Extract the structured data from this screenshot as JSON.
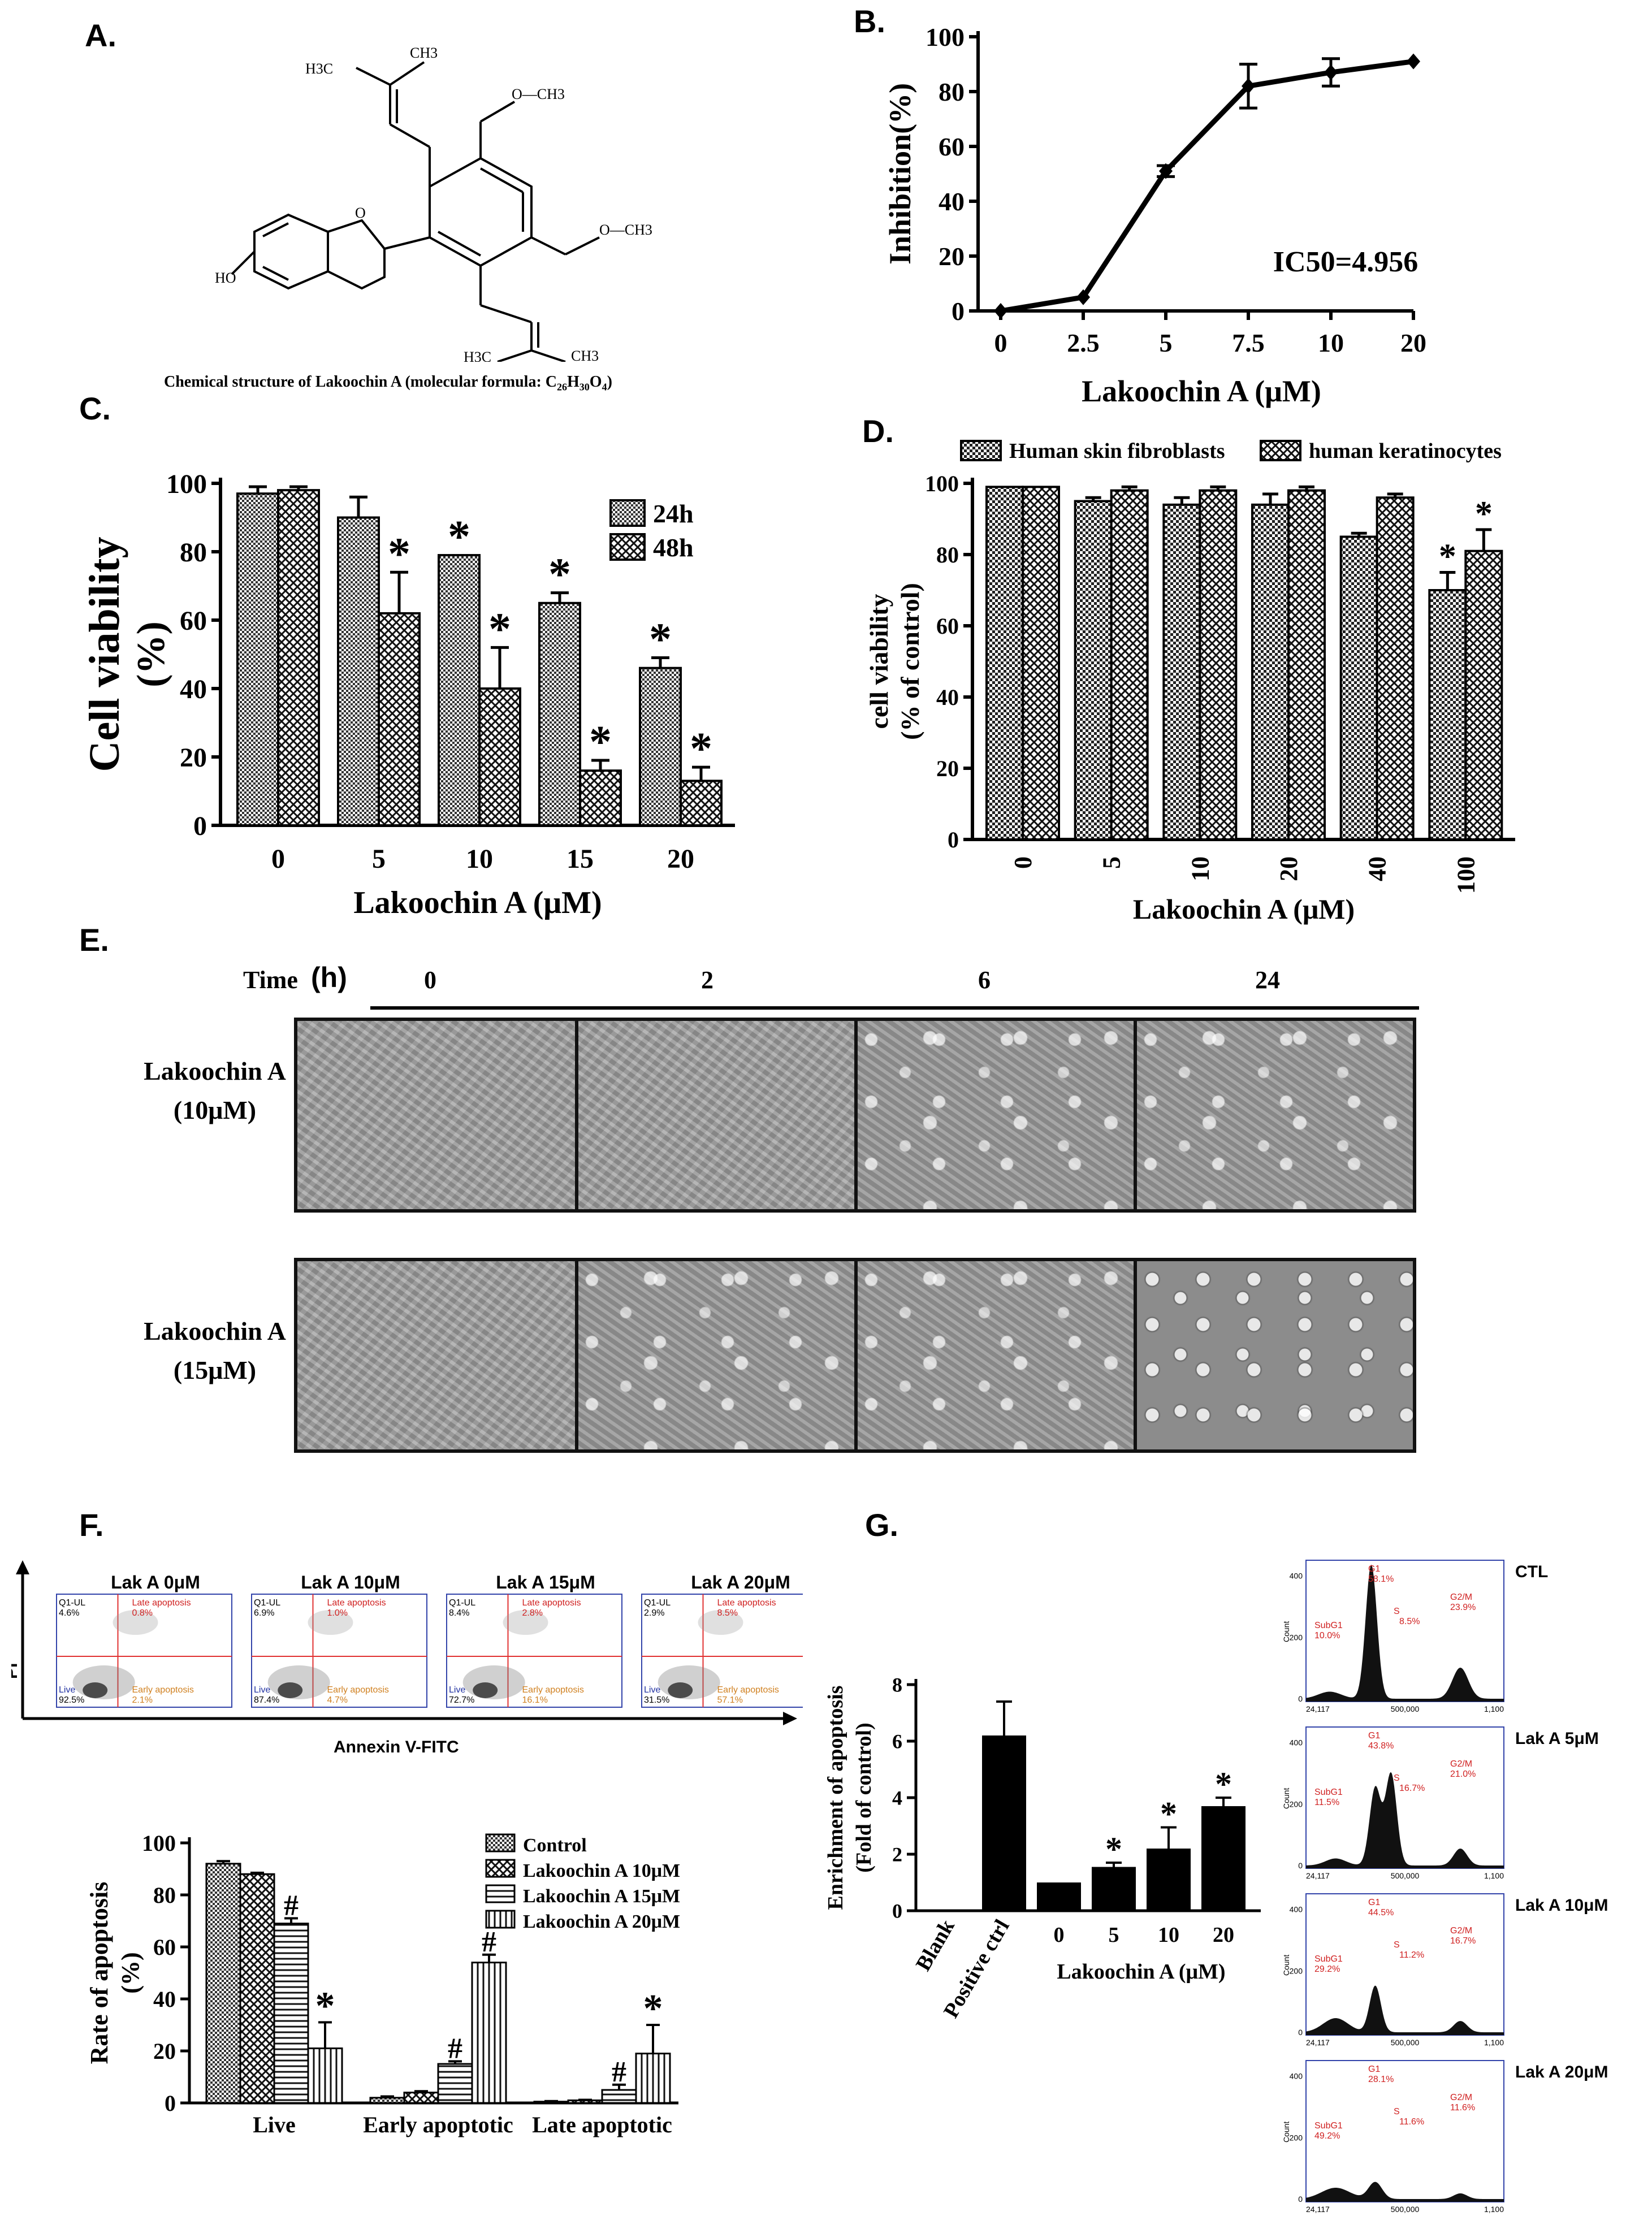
{
  "panels": {
    "A": "A.",
    "B": "B.",
    "C": "C.",
    "D": "D.",
    "E": "E.",
    "F": "F.",
    "G": "G."
  },
  "panelA": {
    "caption_prefix": "Chemical structure of Lakoochin A (molecular formula: C",
    "sub1": "26",
    "mid": "H",
    "sub2": "30",
    "mid2": "O",
    "sub3": "4",
    "suffix": ")",
    "labels": {
      "ch3_top": "CH3",
      "h3c_left": "H3C",
      "och3_top": "O—CH3",
      "och3_mid": "O—CH3",
      "ho": "HO",
      "o_ring": "O",
      "h3c_bottom": "H3C",
      "ch3_bottom": "CH3"
    }
  },
  "chart_data": [
    {
      "id": "B",
      "type": "line",
      "categories": [
        "0",
        "2.5",
        "5",
        "7.5",
        "10",
        "20"
      ],
      "values": [
        0,
        5,
        51,
        82,
        87,
        91
      ],
      "errors": [
        0,
        0,
        2,
        8,
        5,
        0
      ],
      "ylabel": "Inhibition(%)",
      "xlabel": "Lakoochin A (μM)",
      "ylim": [
        0,
        100
      ],
      "yticks": [
        "0",
        "20",
        "40",
        "60",
        "80",
        "100"
      ],
      "annotation": "IC50=4.956"
    },
    {
      "id": "C",
      "type": "bar",
      "categories": [
        "0",
        "5",
        "10",
        "15",
        "20"
      ],
      "series": [
        {
          "name": "24h",
          "values": [
            97,
            90,
            79,
            65,
            46
          ],
          "errors": [
            2,
            6,
            0,
            3,
            3
          ],
          "stars": [
            false,
            false,
            true,
            true,
            true
          ]
        },
        {
          "name": "48h",
          "values": [
            98,
            62,
            40,
            16,
            13
          ],
          "errors": [
            1,
            12,
            12,
            3,
            4
          ],
          "stars": [
            false,
            true,
            true,
            true,
            true
          ]
        }
      ],
      "ylabel_line1": "Cell viability",
      "ylabel_line2": "(%)",
      "xlabel": "Lakoochin A (μM)",
      "ylim": [
        0,
        100
      ],
      "yticks": [
        "0",
        "20",
        "40",
        "60",
        "80",
        "100"
      ],
      "star": "*",
      "legend": [
        "24h",
        "48h"
      ]
    },
    {
      "id": "D",
      "type": "bar",
      "categories": [
        "0",
        "5",
        "10",
        "20",
        "40",
        "100"
      ],
      "series": [
        {
          "name": "Human skin fibroblasts",
          "values": [
            99,
            95,
            94,
            94,
            85,
            70
          ],
          "errors": [
            0,
            1,
            2,
            3,
            1,
            5
          ],
          "stars": [
            false,
            false,
            false,
            false,
            false,
            true
          ]
        },
        {
          "name": "human keratinocytes",
          "values": [
            99,
            98,
            98,
            98,
            96,
            81
          ],
          "errors": [
            0,
            1,
            1,
            1,
            1,
            6
          ],
          "stars": [
            false,
            false,
            false,
            false,
            false,
            true
          ]
        }
      ],
      "ylabel_line1": "cell viability",
      "ylabel_line2": "(% of control)",
      "xlabel": "Lakoochin A  (μM)",
      "ylim": [
        0,
        100
      ],
      "yticks": [
        "0",
        "20",
        "40",
        "60",
        "80",
        "100"
      ],
      "star": "*"
    },
    {
      "id": "F",
      "type": "bar",
      "categories": [
        "Live",
        "Early apoptotic",
        "Late apoptotic"
      ],
      "series": [
        {
          "name": "Control",
          "values": [
            92,
            2,
            0.5
          ],
          "errors": [
            1,
            0.5,
            0.2
          ],
          "marks": [
            "",
            "",
            ""
          ]
        },
        {
          "name": "Lakoochin A 10μM",
          "values": [
            88,
            4,
            1
          ],
          "errors": [
            0.5,
            0.5,
            0.2
          ],
          "marks": [
            "",
            "",
            ""
          ]
        },
        {
          "name": "Lakoochin A 15μM",
          "values": [
            69,
            15,
            5
          ],
          "errors": [
            2,
            1,
            2
          ],
          "marks": [
            "#",
            "#",
            "#"
          ]
        },
        {
          "name": "Lakoochin A 20μM",
          "values": [
            21,
            54,
            19
          ],
          "errors": [
            10,
            3,
            11
          ],
          "marks": [
            "*",
            "#",
            "*"
          ]
        }
      ],
      "ylabel_line1": "Rate of apoptosis",
      "ylabel_line2": "(%)",
      "ylim": [
        0,
        100
      ],
      "yticks": [
        "0",
        "20",
        "40",
        "60",
        "80",
        "100"
      ]
    },
    {
      "id": "G",
      "type": "bar",
      "categories": [
        "Blank",
        "Positive ctrl",
        "0",
        "5",
        "10",
        "20"
      ],
      "values": [
        0,
        6.2,
        1.0,
        1.55,
        2.2,
        3.7
      ],
      "errors": [
        0,
        1.2,
        0,
        0.15,
        0.75,
        0.3
      ],
      "stars": [
        false,
        false,
        false,
        true,
        true,
        true
      ],
      "ylabel_line1": "Enrichment of apoptosis",
      "ylabel_line2": "(Fold of control)",
      "xlabel": "Lakoochin A (μM)",
      "ylim": [
        0,
        8
      ],
      "yticks": [
        "0",
        "2",
        "4",
        "6",
        "8"
      ],
      "star": "*"
    }
  ],
  "panelE": {
    "time_label": "Time",
    "time_unit": "(h)",
    "times": [
      "0",
      "2",
      "6",
      "24"
    ],
    "rows": [
      {
        "line1": "Lakoochin A",
        "line2": "(10μM)"
      },
      {
        "line1": "Lakoochin A",
        "line2": "(15μM)"
      }
    ]
  },
  "panelF_flow": {
    "ylabel": "PI",
    "xlabel": "Annexin V-FITC",
    "plots": [
      {
        "title": "Lak A  0μM",
        "ul": "Q1-UL",
        "ul_val": "4.6%",
        "late": "Late apoptosis",
        "late_val": "0.8%",
        "early": "Early apoptosis",
        "early_val": "2.1%",
        "live": "Live",
        "live_val": "92.5%"
      },
      {
        "title": "Lak A  10μM",
        "ul": "Q1-UL",
        "ul_val": "6.9%",
        "late": "Late apoptosis",
        "late_val": "1.0%",
        "early": "Early apoptosis",
        "early_val": "4.7%",
        "live": "Live",
        "live_val": "87.4%"
      },
      {
        "title": "Lak A 15μM",
        "ul": "Q1-UL",
        "ul_val": "8.4%",
        "late": "Late apoptosis",
        "late_val": "2.8%",
        "early": "Early apoptosis",
        "early_val": "16.1%",
        "live": "Live",
        "live_val": "72.7%"
      },
      {
        "title": "Lak A  20μM",
        "ul": "Q1-UL",
        "ul_val": "2.9%",
        "late": "Late apoptosis",
        "late_val": "8.5%",
        "early": "Early apoptosis",
        "early_val": "57.1%",
        "live": "Live",
        "live_val": "31.5%"
      }
    ]
  },
  "panelG_hist": {
    "ylabel": "Count",
    "xticks": [
      "24,117",
      "500,000",
      "1,100"
    ],
    "yticks": [
      "0",
      "200",
      "400"
    ],
    "plots": [
      {
        "label": "CTL",
        "g1": "G1",
        "g1_val": "58.1%",
        "s": "S",
        "s_val": "8.5%",
        "g2m": "G2/M",
        "g2m_val": "23.9%",
        "subg1": "SubG1",
        "subg1_val": "10.0%"
      },
      {
        "label": "Lak A  5μM",
        "g1": "G1",
        "g1_val": "43.8%",
        "s": "S",
        "s_val": "16.7%",
        "g2m": "G2/M",
        "g2m_val": "21.0%",
        "subg1": "SubG1",
        "subg1_val": "11.5%"
      },
      {
        "label": "Lak A  10μM",
        "g1": "G1",
        "g1_val": "44.5%",
        "s": "S",
        "s_val": "11.2%",
        "g2m": "G2/M",
        "g2m_val": "16.7%",
        "subg1": "SubG1",
        "subg1_val": "29.2%"
      },
      {
        "label": "Lak A  20μM",
        "g1": "G1",
        "g1_val": "28.1%",
        "s": "S",
        "s_val": "11.6%",
        "g2m": "G2/M",
        "g2m_val": "11.6%",
        "subg1": "SubG1",
        "subg1_val": "49.2%"
      }
    ]
  }
}
